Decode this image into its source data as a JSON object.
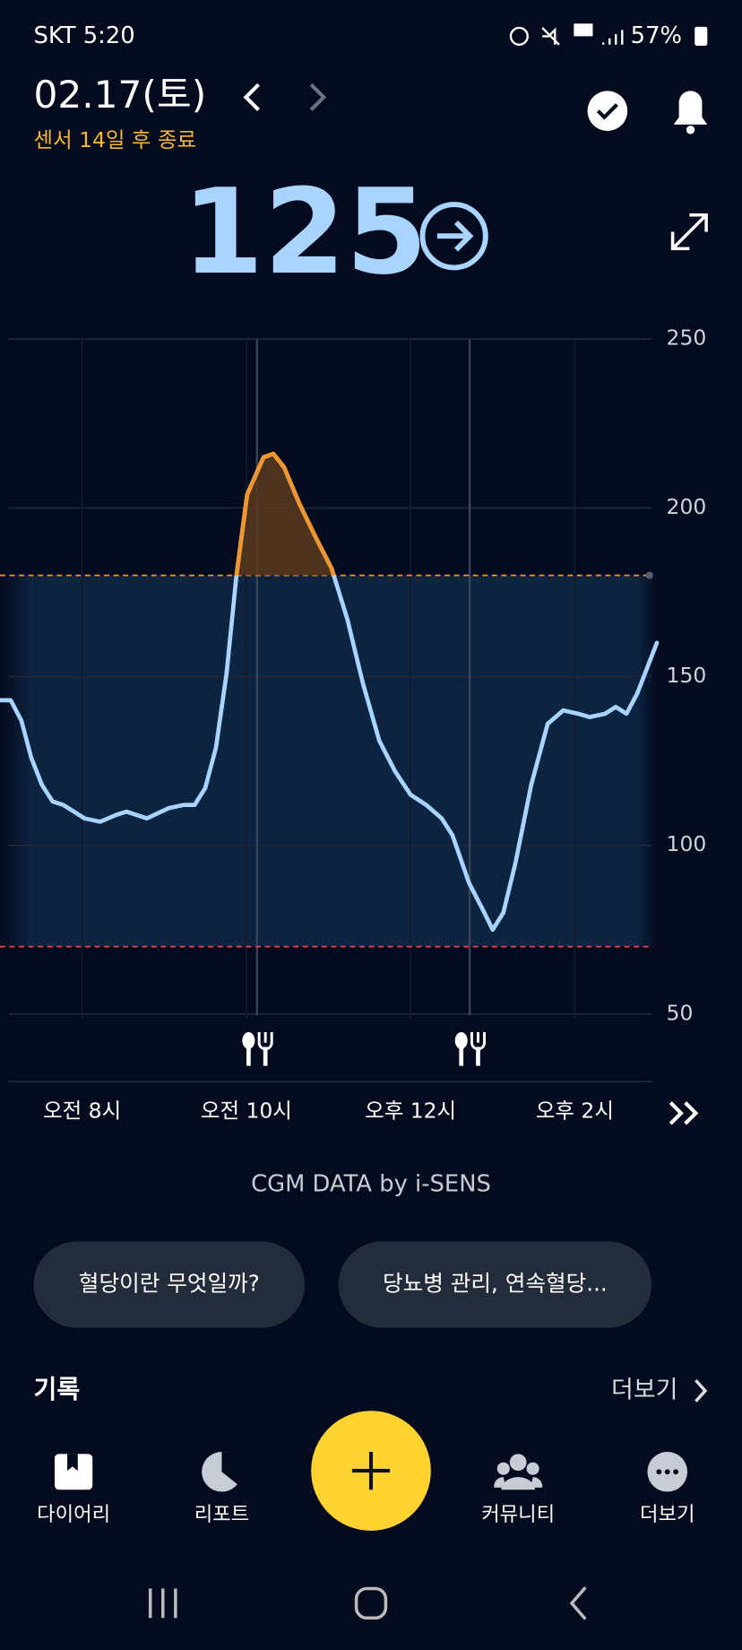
{
  "status_bar": {
    "carrier_time": "SKT 5:20",
    "battery": "57%"
  },
  "header": {
    "date": "02.17(토)",
    "sensor_notice": "센서 14일 후 종료"
  },
  "current_glucose": 125,
  "chart_data": {
    "type": "line",
    "x": [
      7.0,
      7.13,
      7.26,
      7.38,
      7.51,
      7.64,
      7.77,
      8.03,
      8.22,
      8.41,
      8.54,
      8.79,
      9.05,
      9.24,
      9.37,
      9.5,
      9.63,
      9.76,
      9.88,
      10.01,
      10.21,
      10.33,
      10.46,
      10.65,
      10.85,
      11.04,
      11.23,
      11.42,
      11.62,
      11.81,
      12.0,
      12.19,
      12.38,
      12.51,
      12.71,
      12.9,
      13.0,
      13.13,
      13.28,
      13.47,
      13.67,
      13.86,
      14.04,
      14.18,
      14.37,
      14.5,
      14.63,
      14.76,
      15.0
    ],
    "values": [
      143,
      143,
      137,
      126,
      118,
      113,
      112,
      108,
      107,
      109,
      110,
      108,
      111,
      112,
      112,
      117,
      129,
      151,
      180,
      204,
      215,
      216,
      212,
      201,
      191,
      182,
      167,
      148,
      131,
      122,
      115,
      112,
      108,
      103,
      89,
      80,
      75,
      80,
      95,
      118,
      136,
      140,
      139,
      138,
      139,
      141,
      139,
      145,
      160
    ],
    "color": "#a8d4ff",
    "high_color": "#f0962e",
    "xlim": [
      7,
      15
    ],
    "ylim": [
      30,
      250
    ],
    "yticks": [
      50,
      100,
      150,
      200,
      250
    ],
    "xticks": [
      {
        "value": 8,
        "label": "오전 8시"
      },
      {
        "value": 10,
        "label": "오전 10시"
      },
      {
        "value": 12,
        "label": "오후 12시"
      },
      {
        "value": 14,
        "label": "오후 2시"
      }
    ],
    "target_range": {
      "low": 70,
      "high": 180,
      "low_color": "#e0455a",
      "high_color": "#f0962e"
    },
    "meals": [
      10.13,
      12.72
    ],
    "grid": true
  },
  "source": "CGM DATA by i-SENS",
  "chips": [
    "혈당이란 무엇일까?",
    "당뇨병 관리, 연속혈당..."
  ],
  "records": {
    "title": "기록",
    "more": "더보기"
  },
  "nav": [
    "다이어리",
    "리포트",
    "커뮤니티",
    "더보기"
  ]
}
